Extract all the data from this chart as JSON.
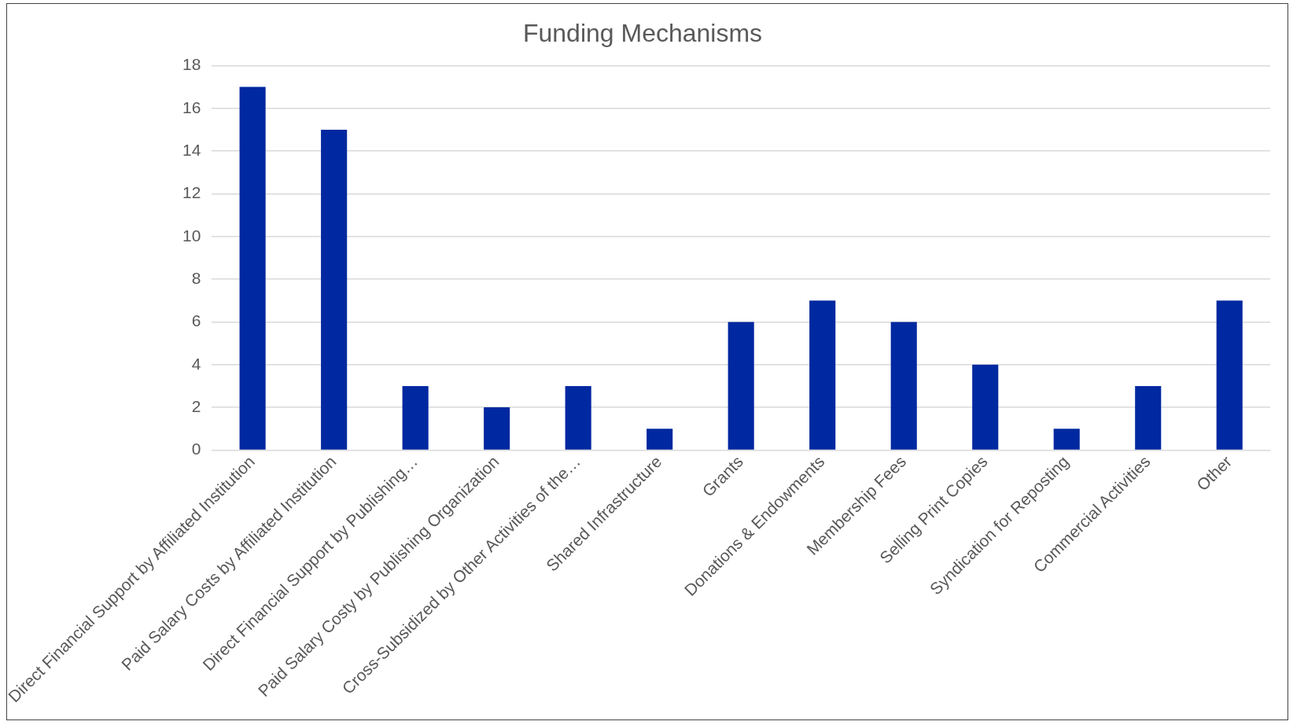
{
  "chart_data": {
    "type": "bar",
    "title": "Funding Mechanisms",
    "categories": [
      "Direct Financial Support by Affiliated Institution",
      "Paid Salary Costs by Affiliated Institution",
      "Direct Financial Support by Publishing…",
      "Paid Salary Costy by Publishing Organization",
      "Cross-Subsidized by Other Activities of the…",
      "Shared Infrastructure",
      "Grants",
      "Donations & Endowments",
      "Membership Fees",
      "Selling Print Copies",
      "Syndication for Reposting",
      "Commercial Activities",
      "Other"
    ],
    "values": [
      17,
      15,
      3,
      2,
      3,
      1,
      6,
      7,
      6,
      4,
      1,
      3,
      7
    ],
    "color": "#0028a0",
    "ylim": [
      0,
      18
    ],
    "yticks": [
      0,
      2,
      4,
      6,
      8,
      10,
      12,
      14,
      16,
      18
    ],
    "grid": "y"
  }
}
